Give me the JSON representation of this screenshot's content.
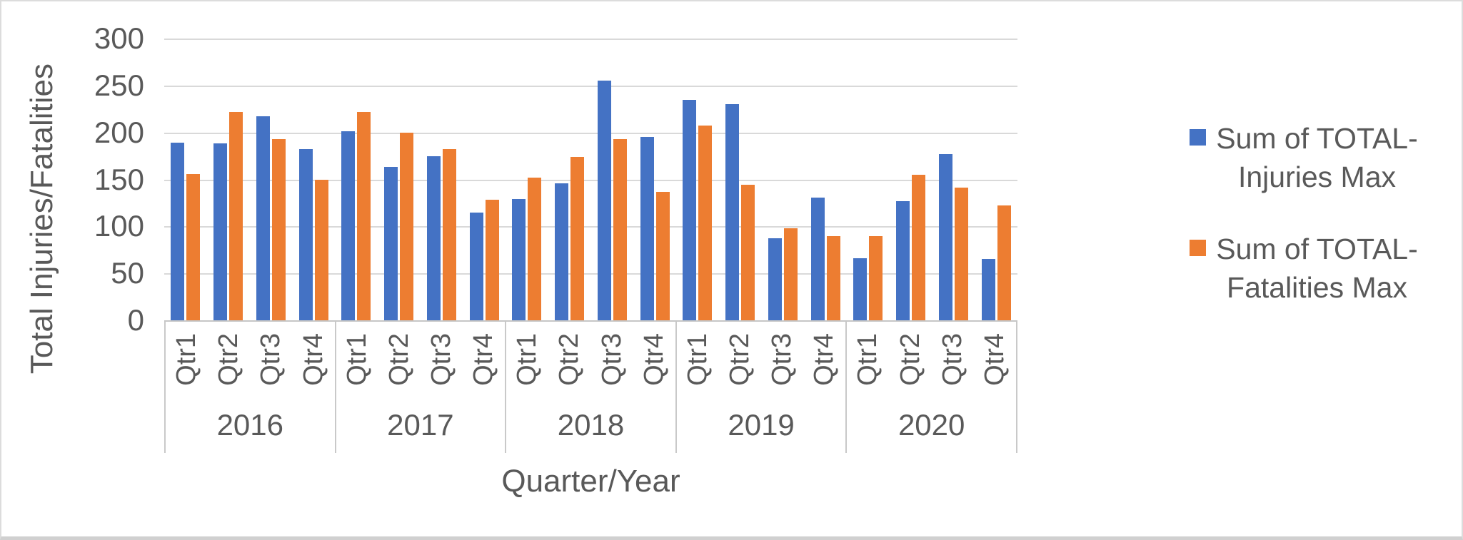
{
  "chart_data": {
    "type": "bar",
    "title": "",
    "xlabel": "Quarter/Year",
    "ylabel": "Total Injuries/Fatalities",
    "ylim": [
      0,
      300
    ],
    "yticks": [
      300,
      250,
      200,
      150,
      100,
      50,
      0
    ],
    "grid": true,
    "legend_position": "right",
    "group_labels": [
      "2016",
      "2017",
      "2018",
      "2019",
      "2020"
    ],
    "category_labels": [
      "Qtr1",
      "Qtr2",
      "Qtr3",
      "Qtr4"
    ],
    "series": [
      {
        "name": "Sum of TOTAL-Injuries Max",
        "color": "#4472C4",
        "values_by_year": [
          [
            189,
            188,
            217,
            182
          ],
          [
            201,
            163,
            175,
            115
          ],
          [
            129,
            146,
            255,
            195
          ],
          [
            235,
            230,
            87,
            131
          ],
          [
            66,
            127,
            177,
            65
          ]
        ]
      },
      {
        "name": "Sum of TOTAL-Fatalities Max",
        "color": "#ED7D31",
        "values_by_year": [
          [
            156,
            222,
            193,
            150
          ],
          [
            222,
            200,
            182,
            128
          ],
          [
            152,
            174,
            193,
            137
          ],
          [
            207,
            144,
            98,
            90
          ],
          [
            90,
            155,
            141,
            122
          ]
        ]
      }
    ]
  },
  "colors": {
    "injuries": "#4472C4",
    "fatalities": "#ED7D31",
    "gridline": "#D9D9D9",
    "axis_line": "#C9C9C9",
    "text": "#595959"
  }
}
